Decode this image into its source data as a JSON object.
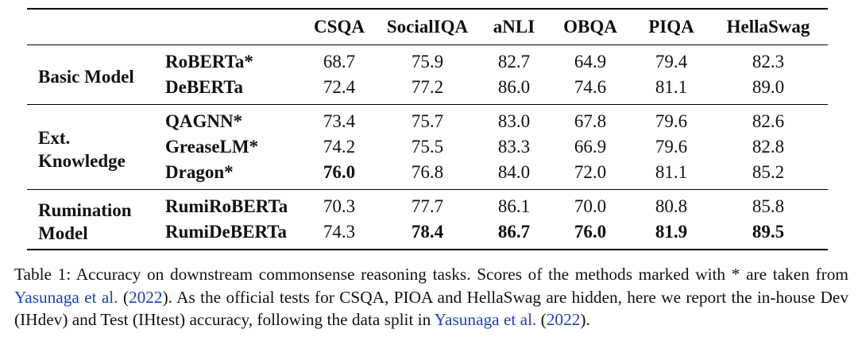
{
  "table": {
    "columns": [
      "CSQA",
      "SocialIQA",
      "aNLI",
      "OBQA",
      "PIQA",
      "HellaSwag"
    ],
    "groups": [
      {
        "label": [
          "Basic Model"
        ],
        "rows": [
          {
            "model": "RoBERTa*",
            "values": [
              "68.7",
              "75.9",
              "82.7",
              "64.9",
              "79.4",
              "82.3"
            ],
            "bold": [
              false,
              false,
              false,
              false,
              false,
              false
            ]
          },
          {
            "model": "DeBERTa",
            "values": [
              "72.4",
              "77.2",
              "86.0",
              "74.6",
              "81.1",
              "89.0"
            ],
            "bold": [
              false,
              false,
              false,
              false,
              false,
              false
            ]
          }
        ]
      },
      {
        "label": [
          "Ext.",
          "Knowledge"
        ],
        "rows": [
          {
            "model": "QAGNN*",
            "values": [
              "73.4",
              "75.7",
              "83.0",
              "67.8",
              "79.6",
              "82.6"
            ],
            "bold": [
              false,
              false,
              false,
              false,
              false,
              false
            ]
          },
          {
            "model": "GreaseLM*",
            "values": [
              "74.2",
              "75.5",
              "83.3",
              "66.9",
              "79.6",
              "82.8"
            ],
            "bold": [
              false,
              false,
              false,
              false,
              false,
              false
            ]
          },
          {
            "model": "Dragon*",
            "values": [
              "76.0",
              "76.8",
              "84.0",
              "72.0",
              "81.1",
              "85.2"
            ],
            "bold": [
              true,
              false,
              false,
              false,
              false,
              false
            ]
          }
        ]
      },
      {
        "label": [
          "Rumination",
          "Model"
        ],
        "rows": [
          {
            "model": "RumiRoBERTa",
            "values": [
              "70.3",
              "77.7",
              "86.1",
              "70.0",
              "80.8",
              "85.8"
            ],
            "bold": [
              false,
              false,
              false,
              false,
              false,
              false
            ]
          },
          {
            "model": "RumiDeBERTa",
            "values": [
              "74.3",
              "78.4",
              "86.7",
              "76.0",
              "81.9",
              "89.5"
            ],
            "bold": [
              false,
              true,
              true,
              true,
              true,
              true
            ]
          }
        ]
      }
    ]
  },
  "caption": {
    "line1": "Table 1: Accuracy on downstream commonsense reasoning tasks. Scores of the methods marked with * are taken",
    "from_word": "from",
    "cite1_author": "Yasunaga et al.",
    "cite1_open": " (",
    "cite1_year": "2022",
    "cite1_close": ").",
    "line2_rest": " As the official tests for CSQA, PIOA and HellaSwag are hidden, here we report the",
    "line3_start": "in-house Dev (IHdev) and Test (IHtest) accuracy, following the data split in",
    "cite2_author": "Yasunaga et al.",
    "cite2_open": " (",
    "cite2_year": "2022",
    "cite2_close": ")."
  }
}
